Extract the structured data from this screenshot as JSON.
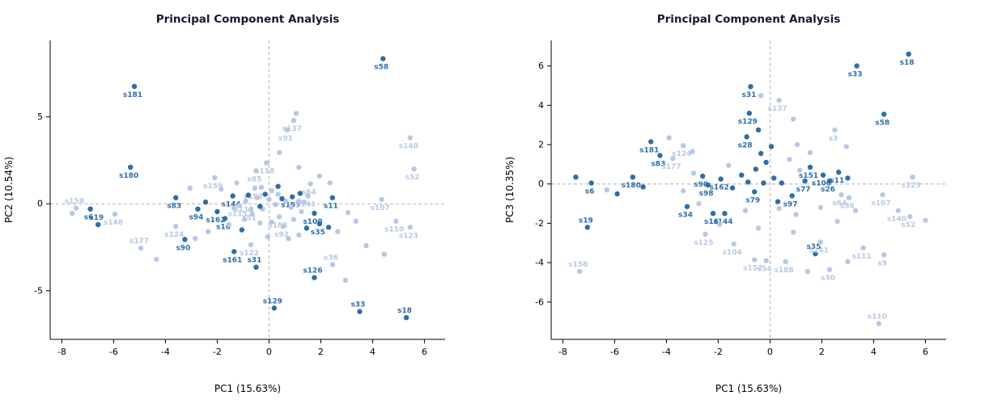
{
  "figure": {
    "background": "#ffffff",
    "title_color": "#181835"
  },
  "series_colors": {
    "d": "#2e6da8",
    "l": "#b7c8e4"
  },
  "series_names": {
    "d": "dark-blue-samples",
    "l": "light-blue-samples"
  },
  "point_format": [
    "x",
    "y",
    "series",
    "label",
    "label_side_a_means_above"
  ],
  "chart_data": [
    {
      "type": "scatter",
      "title": "Principal Component Analysis",
      "xlabel": "PC1 (15.63%)",
      "ylabel": "PC2 (10.54%)",
      "xlim": [
        -8.45,
        6.8
      ],
      "ylim": [
        -7.8,
        9.4
      ],
      "xticks": [
        -8,
        -6,
        -4,
        -2,
        0,
        2,
        4,
        6
      ],
      "yticks": [
        -5,
        0,
        5
      ],
      "grid": false,
      "zero_reference_lines": true,
      "legend": "none",
      "points": [
        [
          4.4,
          8.35,
          "d",
          "s58"
        ],
        [
          -5.2,
          6.75,
          "d",
          "s181"
        ],
        [
          -5.35,
          2.1,
          "d",
          "s180"
        ],
        [
          -3.6,
          0.35,
          "d",
          "s83"
        ],
        [
          -6.9,
          -0.3,
          "d",
          "s6"
        ],
        [
          -6.6,
          -1.2,
          "d",
          "s19",
          "a"
        ],
        [
          -3.25,
          -2.05,
          "d",
          "s90"
        ],
        [
          -1.35,
          -2.75,
          "d",
          "s161"
        ],
        [
          -0.5,
          -3.65,
          "d",
          "s31",
          "a"
        ],
        [
          1.75,
          -4.25,
          "d",
          "s126",
          "a"
        ],
        [
          0.2,
          -6.0,
          "d",
          "s129",
          "a"
        ],
        [
          3.5,
          -6.2,
          "d",
          "s33",
          "a"
        ],
        [
          5.3,
          -6.55,
          "d",
          "s18",
          "a"
        ],
        [
          2.45,
          0.35,
          "d",
          "s11"
        ],
        [
          0.9,
          0.4,
          "d",
          "s157"
        ],
        [
          -2.0,
          -0.45,
          "d",
          "s162"
        ],
        [
          -1.7,
          -0.85,
          "d",
          "s16"
        ],
        [
          -2.75,
          -0.3,
          "d",
          "s94"
        ],
        [
          -1.4,
          0.45,
          "d",
          "s144"
        ],
        [
          1.75,
          -0.55,
          "d",
          "s100"
        ],
        [
          1.95,
          -1.15,
          "d",
          "s35"
        ],
        [
          0.95,
          4.8,
          "l",
          "s137"
        ],
        [
          0.7,
          4.25,
          "l",
          "s91"
        ],
        [
          5.45,
          3.8,
          "l",
          "s140"
        ],
        [
          5.6,
          2.0,
          "l",
          "s52"
        ],
        [
          -0.1,
          2.35,
          "l",
          "s118"
        ],
        [
          -0.5,
          1.9,
          "l",
          "s85"
        ],
        [
          -2.1,
          1.5,
          "l",
          "s159"
        ],
        [
          1.6,
          1.15,
          "l",
          "s64"
        ],
        [
          4.35,
          0.25,
          "l",
          "s107"
        ],
        [
          -7.45,
          -0.25,
          "l",
          "s158",
          "a"
        ],
        [
          -5.95,
          -0.6,
          "l",
          "s148"
        ],
        [
          -3.6,
          -1.3,
          "l",
          "s124"
        ],
        [
          -4.95,
          -2.55,
          "l",
          "s177",
          "a"
        ],
        [
          -0.7,
          -2.35,
          "l",
          "s122"
        ],
        [
          2.45,
          -3.5,
          "l",
          "s36",
          "a"
        ],
        [
          4.9,
          -1.0,
          "l",
          "s110"
        ],
        [
          5.45,
          -1.35,
          "l",
          "s123"
        ],
        [
          0.4,
          -0.75,
          "l",
          "s188"
        ],
        [
          0.55,
          -1.3,
          "l",
          "s92"
        ],
        [
          -0.55,
          0.9,
          "l",
          "s153"
        ],
        [
          -0.9,
          0.15,
          "l",
          "s119"
        ],
        [
          -0.7,
          -0.35,
          "l",
          "s51"
        ],
        [
          1.5,
          0.45,
          "l",
          "s141"
        ],
        [
          -1.15,
          -0.1,
          "l",
          "s115"
        ],
        [
          1.05,
          5.2,
          "l"
        ],
        [
          0.4,
          2.95,
          "l"
        ],
        [
          1.15,
          2.1,
          "l"
        ],
        [
          1.95,
          1.6,
          "l"
        ],
        [
          2.35,
          1.2,
          "l"
        ],
        [
          -1.25,
          1.2,
          "l"
        ],
        [
          -1.85,
          0.85,
          "l"
        ],
        [
          -3.05,
          0.9,
          "l"
        ],
        [
          -0.3,
          0.95,
          "l"
        ],
        [
          0.1,
          0.75,
          "l"
        ],
        [
          0.35,
          0.55,
          "l"
        ],
        [
          -0.45,
          0.35,
          "l"
        ],
        [
          0.0,
          0.25,
          "l"
        ],
        [
          0.25,
          -0.05,
          "l"
        ],
        [
          -0.25,
          -0.3,
          "l"
        ],
        [
          0.65,
          0.15,
          "l"
        ],
        [
          0.85,
          -0.2,
          "l"
        ],
        [
          1.15,
          0.15,
          "l"
        ],
        [
          -0.65,
          -0.6,
          "l"
        ],
        [
          -0.95,
          -0.9,
          "l"
        ],
        [
          -0.35,
          -1.1,
          "l"
        ],
        [
          0.1,
          -1.05,
          "l"
        ],
        [
          0.95,
          -0.9,
          "l"
        ],
        [
          1.25,
          -0.45,
          "l"
        ],
        [
          1.35,
          0.1,
          "l"
        ],
        [
          -1.35,
          -0.25,
          "l"
        ],
        [
          -1.55,
          -1.2,
          "l"
        ],
        [
          -2.35,
          -1.6,
          "l"
        ],
        [
          -2.85,
          -2.0,
          "l"
        ],
        [
          0.75,
          -2.0,
          "l"
        ],
        [
          1.15,
          -1.8,
          "l"
        ],
        [
          -0.05,
          -1.9,
          "l"
        ],
        [
          3.05,
          -0.5,
          "l"
        ],
        [
          3.35,
          -1.0,
          "l"
        ],
        [
          2.65,
          -1.6,
          "l"
        ],
        [
          3.75,
          -2.4,
          "l"
        ],
        [
          4.45,
          -2.9,
          "l"
        ],
        [
          -4.35,
          -3.2,
          "l"
        ],
        [
          2.95,
          -4.4,
          "l"
        ],
        [
          -7.6,
          -0.55,
          "l"
        ],
        [
          0.35,
          1.0,
          "d"
        ],
        [
          -0.15,
          0.55,
          "d"
        ],
        [
          1.2,
          0.6,
          "d"
        ],
        [
          2.3,
          -1.35,
          "d"
        ],
        [
          1.45,
          -1.4,
          "d"
        ],
        [
          -1.05,
          -1.5,
          "d"
        ],
        [
          -2.45,
          0.1,
          "d"
        ],
        [
          -0.8,
          0.5,
          "d"
        ],
        [
          0.5,
          0.3,
          "d"
        ],
        [
          -0.35,
          -0.15,
          "d"
        ]
      ]
    },
    {
      "type": "scatter",
      "title": "Principal Component Analysis",
      "xlabel": "PC1 (15.63%)",
      "ylabel": "PC3 (10.35%)",
      "xlim": [
        -8.45,
        6.8
      ],
      "ylim": [
        -7.9,
        7.3
      ],
      "xticks": [
        -8,
        -6,
        -4,
        -2,
        0,
        2,
        4,
        6
      ],
      "yticks": [
        -6,
        -4,
        -2,
        0,
        2,
        4,
        6
      ],
      "grid": false,
      "zero_reference_lines": true,
      "legend": "none",
      "points": [
        [
          5.35,
          6.6,
          "d",
          "s18"
        ],
        [
          3.35,
          6.0,
          "d",
          "s33"
        ],
        [
          -0.75,
          4.95,
          "d",
          "s31"
        ],
        [
          -0.8,
          3.6,
          "d",
          "s129"
        ],
        [
          4.4,
          3.55,
          "d",
          "s58"
        ],
        [
          -4.6,
          2.15,
          "d",
          "s181"
        ],
        [
          -4.25,
          1.45,
          "d",
          "s83"
        ],
        [
          -5.3,
          0.35,
          "d",
          "s180"
        ],
        [
          -2.6,
          0.4,
          "d",
          "s90"
        ],
        [
          -2.4,
          -0.05,
          "d",
          "s98"
        ],
        [
          2.65,
          0.6,
          "d",
          "s11"
        ],
        [
          1.55,
          0.85,
          "d",
          "s151"
        ],
        [
          2.05,
          0.45,
          "d",
          "s100"
        ],
        [
          1.35,
          0.15,
          "d",
          "s77"
        ],
        [
          2.3,
          0.15,
          "d",
          "s26"
        ],
        [
          -6.9,
          0.05,
          "d",
          "s6"
        ],
        [
          -7.05,
          -2.2,
          "d",
          "s19",
          "a"
        ],
        [
          -3.2,
          -1.15,
          "d",
          "s34"
        ],
        [
          -2.2,
          -1.5,
          "d",
          "s16"
        ],
        [
          -1.75,
          -1.5,
          "d",
          "s144"
        ],
        [
          -0.6,
          -0.4,
          "d",
          "s79"
        ],
        [
          0.85,
          -0.6,
          "d",
          "s97"
        ],
        [
          1.75,
          -3.55,
          "d",
          "s35",
          "a"
        ],
        [
          -1.9,
          0.25,
          "d",
          "s162"
        ],
        [
          -0.9,
          2.4,
          "d",
          "s28"
        ],
        [
          0.35,
          4.25,
          "l",
          "s137"
        ],
        [
          2.5,
          2.75,
          "l",
          "s3"
        ],
        [
          -3.35,
          1.95,
          "l",
          "s124"
        ],
        [
          -3.75,
          1.3,
          "l",
          "s177"
        ],
        [
          5.5,
          0.35,
          "l",
          "s123"
        ],
        [
          2.75,
          -0.55,
          "l",
          "s64"
        ],
        [
          3.05,
          -0.7,
          "l",
          "s36"
        ],
        [
          4.35,
          -0.55,
          "l",
          "s107"
        ],
        [
          4.95,
          -1.35,
          "l",
          "s140"
        ],
        [
          5.4,
          -1.65,
          "l",
          "s52"
        ],
        [
          -2.5,
          -2.55,
          "l",
          "s125"
        ],
        [
          -1.4,
          -3.05,
          "l",
          "s104"
        ],
        [
          1.95,
          -2.95,
          "l",
          "s141"
        ],
        [
          3.6,
          -3.25,
          "l",
          "s111"
        ],
        [
          4.4,
          -3.6,
          "l",
          "s9"
        ],
        [
          -0.6,
          -3.85,
          "l",
          "s157"
        ],
        [
          -0.15,
          -3.9,
          "l",
          "s54"
        ],
        [
          0.6,
          -3.95,
          "l",
          "s188"
        ],
        [
          2.3,
          -4.35,
          "l",
          "s30"
        ],
        [
          -7.35,
          -4.45,
          "l",
          "s158",
          "a"
        ],
        [
          4.2,
          -7.1,
          "l",
          "s110",
          "a"
        ],
        [
          -7.5,
          0.35,
          "d"
        ],
        [
          -5.9,
          -0.5,
          "d"
        ],
        [
          -4.9,
          -0.15,
          "d"
        ],
        [
          -0.45,
          2.75,
          "d"
        ],
        [
          0.05,
          1.9,
          "d"
        ],
        [
          -0.35,
          1.55,
          "d"
        ],
        [
          -0.15,
          1.1,
          "d"
        ],
        [
          -0.55,
          0.75,
          "d"
        ],
        [
          -1.1,
          0.45,
          "d"
        ],
        [
          -0.85,
          0.1,
          "d"
        ],
        [
          -0.25,
          0.05,
          "d"
        ],
        [
          0.15,
          0.3,
          "d"
        ],
        [
          0.45,
          0.05,
          "d"
        ],
        [
          -1.45,
          -0.2,
          "d"
        ],
        [
          0.3,
          -0.9,
          "d"
        ],
        [
          3.0,
          0.3,
          "d"
        ],
        [
          -3.9,
          2.35,
          "l"
        ],
        [
          -3.0,
          1.65,
          "l"
        ],
        [
          1.05,
          2.0,
          "l"
        ],
        [
          1.55,
          1.6,
          "l"
        ],
        [
          2.95,
          1.9,
          "l"
        ],
        [
          0.75,
          1.25,
          "l"
        ],
        [
          1.15,
          0.7,
          "l"
        ],
        [
          -1.6,
          0.95,
          "l"
        ],
        [
          -2.95,
          0.55,
          "l"
        ],
        [
          -3.35,
          -0.35,
          "l"
        ],
        [
          -2.75,
          -1.0,
          "l"
        ],
        [
          -1.95,
          -2.05,
          "l"
        ],
        [
          -0.95,
          -1.35,
          "l"
        ],
        [
          0.35,
          -1.25,
          "l"
        ],
        [
          1.0,
          -1.55,
          "l"
        ],
        [
          1.95,
          -1.2,
          "l"
        ],
        [
          2.6,
          -1.9,
          "l"
        ],
        [
          3.3,
          -1.35,
          "l"
        ],
        [
          -0.45,
          -2.25,
          "l"
        ],
        [
          0.9,
          -2.45,
          "l"
        ],
        [
          3.0,
          -3.95,
          "l"
        ],
        [
          1.45,
          -4.45,
          "l"
        ],
        [
          0.9,
          3.3,
          "l"
        ],
        [
          -0.35,
          4.5,
          "l"
        ],
        [
          6.0,
          -1.85,
          "l"
        ],
        [
          -6.3,
          -0.3,
          "l"
        ]
      ]
    }
  ]
}
